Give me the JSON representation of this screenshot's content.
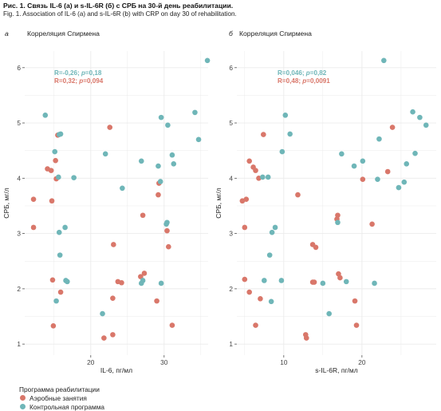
{
  "figure": {
    "title": "Рис. 1. Связь IL-6 (а) и s-IL-6R (б) с СРБ на 30-й день реабилитации.",
    "subtitle": "Fig. 1. Association of IL-6 (a) and s-IL-6R (b) with CRP on day 30 of rehabilitation."
  },
  "colors": {
    "aerobic": "#d9776a",
    "control": "#6fb6b8",
    "grid": "#ebebeb"
  },
  "legend": {
    "title": "Программа реабилитации",
    "items": [
      "Аэробные занятия",
      "Контрольная программа"
    ]
  },
  "chart_data": [
    {
      "type": "scatter",
      "panel_letter": "а",
      "title": "Корреляция Спирмена",
      "xlabel": "IL-6, пг/мл",
      "ylabel": "СРБ, мг/л",
      "xlim": [
        11,
        36
      ],
      "ylim": [
        0.8,
        6.3
      ],
      "xticks": [
        20,
        30
      ],
      "yticks": [
        1,
        2,
        3,
        4,
        5,
        6
      ],
      "grid": true,
      "annotations": [
        {
          "text": "R=-0,26; p=0,18",
          "series": "Контрольная программа",
          "position": "top-left"
        },
        {
          "text": "R=0,32; p=0,094",
          "series": "Аэробные занятия",
          "position": "top-left"
        }
      ],
      "series": [
        {
          "name": "Аэробные занятия",
          "points": [
            [
              12.2,
              3.62
            ],
            [
              12.2,
              3.11
            ],
            [
              14.1,
              4.17
            ],
            [
              14.6,
              4.14
            ],
            [
              14.7,
              3.59
            ],
            [
              15.2,
              4.32
            ],
            [
              15.3,
              3.99
            ],
            [
              15.5,
              4.78
            ],
            [
              14.8,
              2.16
            ],
            [
              15.9,
              1.94
            ],
            [
              14.9,
              1.33
            ],
            [
              22.6,
              4.92
            ],
            [
              23.1,
              2.8
            ],
            [
              23.7,
              2.13
            ],
            [
              24.2,
              2.11
            ],
            [
              23.0,
              1.83
            ],
            [
              21.8,
              1.11
            ],
            [
              23.0,
              1.17
            ],
            [
              27.1,
              3.33
            ],
            [
              29.2,
              3.7
            ],
            [
              29.3,
              3.91
            ],
            [
              30.4,
              3.05
            ],
            [
              30.6,
              2.76
            ],
            [
              26.8,
              2.22
            ],
            [
              27.3,
              2.28
            ],
            [
              29.0,
              1.78
            ],
            [
              31.1,
              1.34
            ]
          ]
        },
        {
          "name": "Контрольная программа",
          "points": [
            [
              13.8,
              5.14
            ],
            [
              15.1,
              4.48
            ],
            [
              15.7,
              4.79
            ],
            [
              15.9,
              4.8
            ],
            [
              15.6,
              4.02
            ],
            [
              17.7,
              4.01
            ],
            [
              15.7,
              3.02
            ],
            [
              16.5,
              3.11
            ],
            [
              15.8,
              2.61
            ],
            [
              16.6,
              2.15
            ],
            [
              16.8,
              2.13
            ],
            [
              15.3,
              1.78
            ],
            [
              22.0,
              4.44
            ],
            [
              24.3,
              3.82
            ],
            [
              26.9,
              4.31
            ],
            [
              29.2,
              4.22
            ],
            [
              29.5,
              3.94
            ],
            [
              29.6,
              5.1
            ],
            [
              30.5,
              4.96
            ],
            [
              31.1,
              4.42
            ],
            [
              31.3,
              4.26
            ],
            [
              30.4,
              3.2
            ],
            [
              30.3,
              3.17
            ],
            [
              29.6,
              2.1
            ],
            [
              26.9,
              2.1
            ],
            [
              27.1,
              2.15
            ],
            [
              21.6,
              1.55
            ],
            [
              34.7,
              4.7
            ],
            [
              34.2,
              5.19
            ],
            [
              35.9,
              6.13
            ]
          ]
        }
      ]
    },
    {
      "type": "scatter",
      "panel_letter": "б",
      "title": "Корреляция Спирмена",
      "xlabel": "s-IL-6R, пг/мл",
      "ylabel": "СРБ, мг/л",
      "xlim": [
        4,
        29.5
      ],
      "ylim": [
        0.8,
        6.3
      ],
      "xticks": [
        10,
        20
      ],
      "yticks": [
        1,
        2,
        3,
        4,
        5,
        6
      ],
      "grid": true,
      "annotations": [
        {
          "text": "R=0,046; p=0,82",
          "series": "Контрольная программа",
          "position": "top-left"
        },
        {
          "text": "R=0,48; p=0,0091",
          "series": "Аэробные занятия",
          "position": "top-left"
        }
      ],
      "series": [
        {
          "name": "Аэробные занятия",
          "points": [
            [
              4.7,
              3.59
            ],
            [
              5.2,
              3.62
            ],
            [
              5.0,
              3.11
            ],
            [
              5.6,
              4.31
            ],
            [
              6.1,
              4.2
            ],
            [
              6.4,
              4.14
            ],
            [
              6.8,
              4.0
            ],
            [
              7.4,
              4.79
            ],
            [
              5.0,
              2.17
            ],
            [
              5.6,
              1.94
            ],
            [
              6.4,
              1.34
            ],
            [
              7.0,
              1.82
            ],
            [
              11.8,
              3.7
            ],
            [
              13.7,
              2.8
            ],
            [
              14.1,
              2.75
            ],
            [
              13.7,
              2.12
            ],
            [
              13.9,
              2.12
            ],
            [
              12.8,
              1.17
            ],
            [
              12.9,
              1.11
            ],
            [
              16.9,
              3.33
            ],
            [
              16.8,
              3.26
            ],
            [
              17.0,
              2.27
            ],
            [
              17.2,
              2.2
            ],
            [
              20.1,
              3.98
            ],
            [
              21.3,
              3.17
            ],
            [
              23.3,
              4.12
            ],
            [
              23.9,
              4.92
            ],
            [
              19.1,
              1.78
            ],
            [
              19.3,
              1.34
            ]
          ]
        },
        {
          "name": "Контрольная программа",
          "points": [
            [
              10.2,
              5.14
            ],
            [
              10.8,
              4.8
            ],
            [
              9.8,
              4.48
            ],
            [
              7.3,
              4.02
            ],
            [
              8.0,
              4.02
            ],
            [
              8.5,
              3.02
            ],
            [
              8.9,
              3.11
            ],
            [
              8.2,
              2.61
            ],
            [
              7.5,
              2.15
            ],
            [
              9.7,
              2.15
            ],
            [
              8.4,
              1.77
            ],
            [
              15.0,
              2.1
            ],
            [
              15.8,
              1.55
            ],
            [
              16.9,
              3.2
            ],
            [
              17.4,
              4.44
            ],
            [
              18.0,
              2.13
            ],
            [
              19.0,
              4.22
            ],
            [
              20.1,
              4.31
            ],
            [
              21.6,
              2.1
            ],
            [
              22.2,
              4.71
            ],
            [
              22.8,
              6.13
            ],
            [
              24.7,
              3.83
            ],
            [
              25.4,
              3.93
            ],
            [
              25.7,
              4.26
            ],
            [
              26.5,
              5.2
            ],
            [
              26.8,
              4.45
            ],
            [
              27.4,
              5.1
            ],
            [
              28.2,
              4.96
            ],
            [
              22.0,
              3.98
            ]
          ]
        }
      ]
    }
  ]
}
